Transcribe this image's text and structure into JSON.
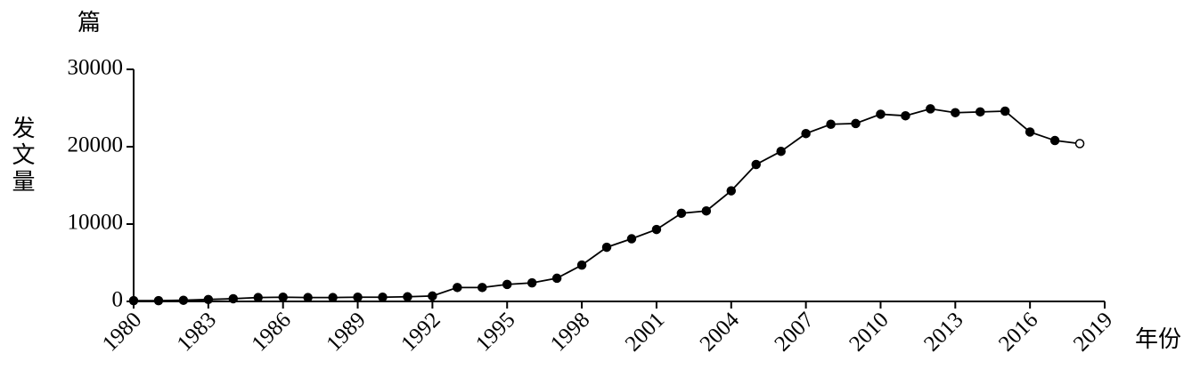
{
  "chart_data": {
    "type": "line",
    "y_unit": "篇",
    "y_label": "发文量",
    "x_unit": "年份",
    "x": [
      1980,
      1981,
      1982,
      1983,
      1984,
      1985,
      1986,
      1987,
      1988,
      1989,
      1990,
      1991,
      1992,
      1993,
      1994,
      1995,
      1996,
      1997,
      1998,
      1999,
      2000,
      2001,
      2002,
      2003,
      2004,
      2005,
      2006,
      2007,
      2008,
      2009,
      2010,
      2011,
      2012,
      2013,
      2014,
      2015,
      2016,
      2017,
      2018
    ],
    "values": [
      100,
      100,
      150,
      250,
      350,
      500,
      550,
      500,
      500,
      550,
      550,
      600,
      700,
      1800,
      1800,
      2200,
      2400,
      3000,
      4700,
      7000,
      8100,
      9300,
      11400,
      11700,
      14300,
      17700,
      19400,
      21700,
      22900,
      23000,
      24200,
      24000,
      24900,
      24400,
      24500,
      24600,
      21900,
      20800,
      20400
    ],
    "color": "#000000",
    "xlim": [
      1980,
      2019
    ],
    "xticks": [
      1980,
      1983,
      1986,
      1989,
      1992,
      1995,
      1998,
      2001,
      2004,
      2007,
      2010,
      2013,
      2016,
      2019
    ],
    "ylim": [
      0,
      30000
    ],
    "yticks": [
      0,
      10000,
      20000,
      30000
    ]
  }
}
